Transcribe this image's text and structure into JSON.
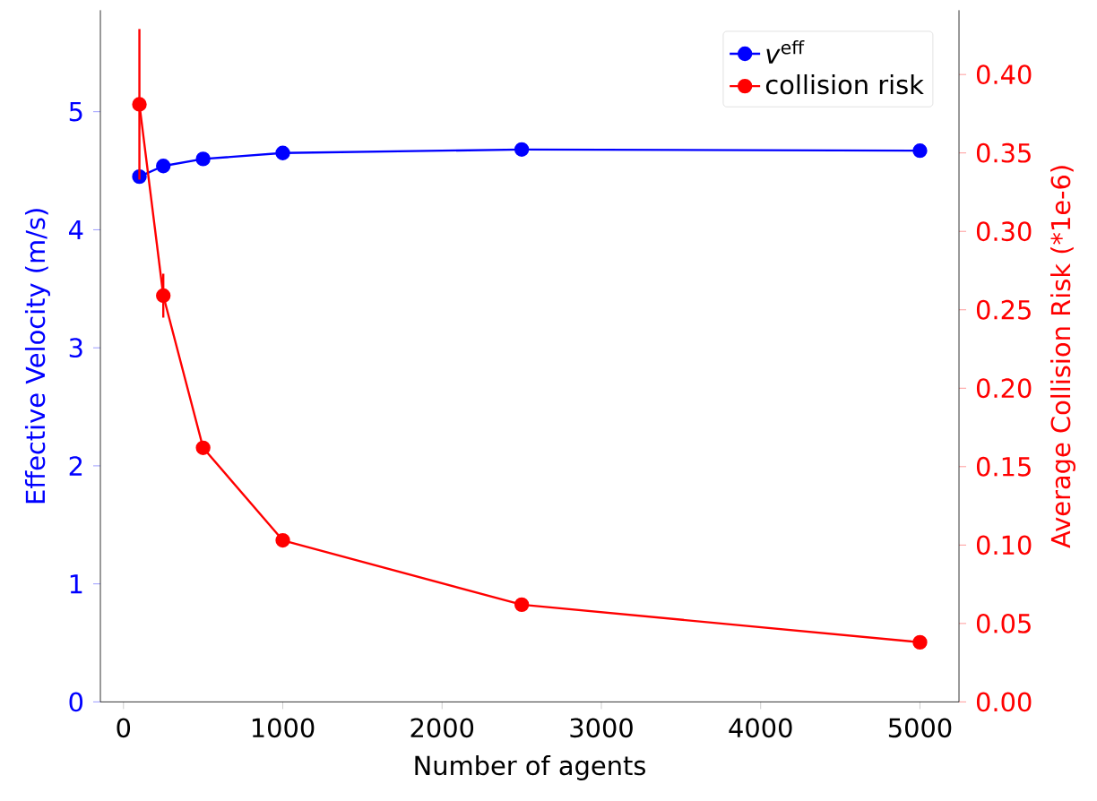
{
  "chart_data": {
    "type": "line",
    "xlabel": "Number of agents",
    "ylabel": "Effective Velocity (m/s)",
    "y2label": "Average Collision Risk (*1e-6)",
    "x": [
      100,
      250,
      500,
      1000,
      2500,
      5000
    ],
    "series": [
      {
        "name": "*v*$^{eff}$",
        "color": "#0000ff",
        "values": [
          4.45,
          4.54,
          4.6,
          4.65,
          4.68,
          4.67
        ]
      },
      {
        "name": "collision risk",
        "color": "#ff0000",
        "axis": "y2",
        "values": [
          0.381,
          0.259,
          0.162,
          0.103,
          0.062,
          0.038
        ],
        "errors": [
          0.048,
          0.014,
          null,
          null,
          null,
          null
        ]
      }
    ],
    "xlim": [
      -145,
      5245
    ],
    "xticks": [
      0,
      1000,
      2000,
      3000,
      4000,
      5000
    ],
    "ylim": [
      0,
      5.86
    ],
    "yticks": [
      0,
      1,
      2,
      3,
      4,
      5
    ],
    "y2lim": [
      0,
      0.441
    ],
    "y2ticks": [
      {
        "value": 0,
        "label": "0.00"
      },
      {
        "value": 0.05,
        "label": "0.05"
      },
      {
        "value": 0.1,
        "label": "0.10"
      },
      {
        "value": 0.15,
        "label": "0.15"
      },
      {
        "value": 0.2,
        "label": "0.20"
      },
      {
        "value": 0.25,
        "label": "0.25"
      },
      {
        "value": 0.3,
        "label": "0.30"
      },
      {
        "value": 0.35,
        "label": "0.35"
      },
      {
        "value": 0.4,
        "label": "0.40"
      }
    ],
    "legend": "top right",
    "marker": "circle",
    "line_style": "solid",
    "grid": false
  }
}
